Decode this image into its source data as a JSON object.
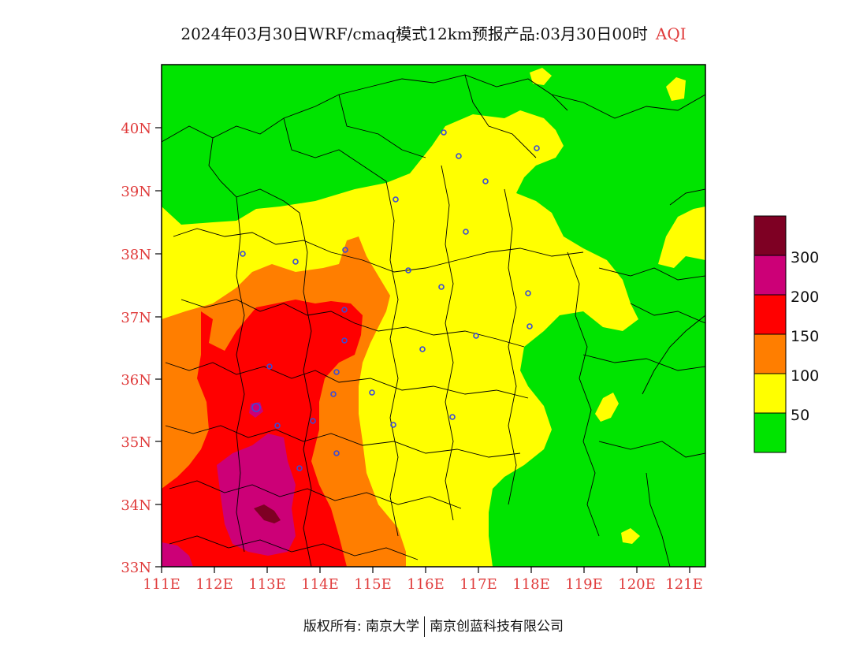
{
  "title": {
    "main": "2024年03月30日WRF/cmaq模式12km预报产品:03月30日00时",
    "variable": "AQI"
  },
  "map": {
    "lon_ticks": [
      "111E",
      "112E",
      "113E",
      "114E",
      "115E",
      "116E",
      "117E",
      "118E",
      "119E",
      "120E",
      "121E"
    ],
    "lat_ticks": [
      "40N",
      "39N",
      "38N",
      "37N",
      "36N",
      "35N",
      "34N",
      "33N"
    ],
    "lon_range": [
      111,
      121.3
    ],
    "lat_range": [
      33,
      41
    ],
    "frame_color": "#000000"
  },
  "legend": {
    "labels": [
      "300",
      "200",
      "150",
      "100",
      "50"
    ],
    "bins": [
      {
        "color": "#7e0023",
        "range": "300+"
      },
      {
        "color": "#cc0077",
        "range": "200-300"
      },
      {
        "color": "#ff0000",
        "range": "150-200"
      },
      {
        "color": "#ff7e00",
        "range": "100-150"
      },
      {
        "color": "#ffff00",
        "range": "50-100"
      },
      {
        "color": "#00e400",
        "range": "0-50"
      }
    ]
  },
  "footer": {
    "copyright": "版权所有: 南京大学",
    "company": "南京创蓝科技有限公司"
  },
  "colors": {
    "green": "#00e400",
    "yellow": "#ffff00",
    "orange": "#ff7e00",
    "red": "#ff0000",
    "magenta": "#cc0077",
    "maroon": "#7e0023",
    "tick_red": "#e03c3c"
  }
}
